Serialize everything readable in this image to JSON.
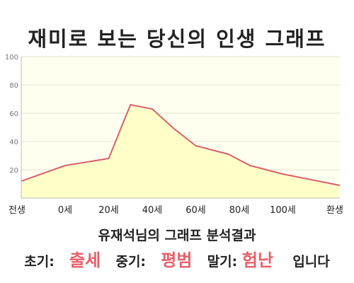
{
  "chart_data": {
    "type": "area",
    "title": "재미로 보는 당신의 인생 그래프",
    "x_tick_labels": [
      "전생",
      "0세",
      "20세",
      "40세",
      "60세",
      "80세",
      "100세",
      "환생"
    ],
    "points": [
      {
        "x": "전생",
        "y": 12
      },
      {
        "x": "0세",
        "y": 23
      },
      {
        "x": "20세",
        "y": 28
      },
      {
        "x": "30세",
        "y": 66
      },
      {
        "x": "40세",
        "y": 63
      },
      {
        "x": "50세",
        "y": 49
      },
      {
        "x": "60세",
        "y": 37
      },
      {
        "x": "75세",
        "y": 31
      },
      {
        "x": "85세",
        "y": 23
      },
      {
        "x": "100세",
        "y": 17
      },
      {
        "x": "환생",
        "y": 9
      }
    ],
    "yticks": [
      20,
      40,
      60,
      80,
      100
    ],
    "ylim": [
      0,
      100
    ],
    "grid": true,
    "colors": {
      "line": "#d9606a",
      "fill": "#ffffc8",
      "plot_bg": "#fffff0",
      "grid": "#e2e2c8"
    }
  },
  "caption": {
    "subtitle": "유재석님의 그래프 분석결과",
    "early_label": "초기:",
    "early_value": "출세",
    "mid_label": "중기:",
    "mid_value": "평범",
    "late_label": "말기:",
    "late_value": "험난",
    "ending": "입니다"
  }
}
